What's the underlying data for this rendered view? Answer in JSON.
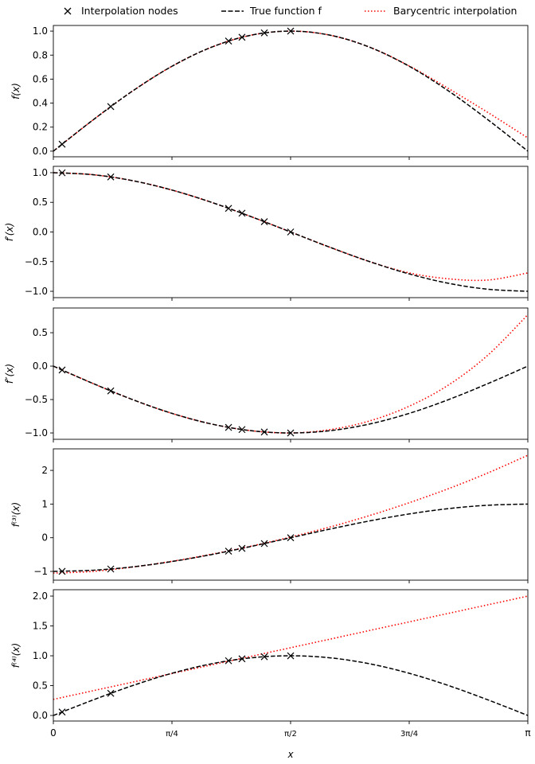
{
  "chart_data": {
    "type": "line",
    "legend": {
      "placement": "top",
      "entries": [
        {
          "label": "Interpolation nodes",
          "marker": "x",
          "color": "#000000"
        },
        {
          "label": "True function f",
          "style": "dashed",
          "color": "#000000"
        },
        {
          "label": "Barycentric interpolation",
          "style": "dotted",
          "color": "#ff0000"
        }
      ]
    },
    "xlabel": "x",
    "xlim": [
      0,
      3.14159
    ],
    "xticks": [
      {
        "value": 0,
        "label": "0"
      },
      {
        "value": 0.7854,
        "label": "π/4"
      },
      {
        "value": 1.5708,
        "label": "π/2"
      },
      {
        "value": 2.3562,
        "label": "3π/4"
      },
      {
        "value": 3.14159,
        "label": "π"
      }
    ],
    "x": [
      0,
      0.2618,
      0.5236,
      0.7854,
      1.0472,
      1.309,
      1.5708,
      1.8326,
      2.0944,
      2.3562,
      2.618,
      2.8798,
      3.14159
    ],
    "nodes_x": [
      0.058,
      0.38,
      1.16,
      1.249,
      1.397,
      1.571
    ],
    "panels": [
      {
        "ylabel": "f(x)",
        "ylim": [
          -0.047,
          1.047
        ],
        "yticks": [
          0.0,
          0.2,
          0.4,
          0.6,
          0.8,
          1.0
        ],
        "ytick_labels": [
          "0.0",
          "0.2",
          "0.4",
          "0.6",
          "0.8",
          "1.0"
        ],
        "true": [
          0,
          0.259,
          0.5,
          0.707,
          0.866,
          0.966,
          1,
          0.966,
          0.866,
          0.707,
          0.5,
          0.259,
          0
        ],
        "interp": [
          0,
          0.259,
          0.5,
          0.707,
          0.866,
          0.966,
          1,
          0.966,
          0.866,
          0.71,
          0.52,
          0.32,
          0.11
        ],
        "nodes_y": [
          0.058,
          0.371,
          0.917,
          0.949,
          0.985,
          1.0
        ]
      },
      {
        "ylabel": "f′(x)",
        "ylim": [
          -1.107,
          1.107
        ],
        "yticks": [
          -1,
          -0.5,
          0,
          0.5,
          1
        ],
        "ytick_labels": [
          "−1.0",
          "−0.5",
          "0.0",
          "0.5",
          "1.0"
        ],
        "true": [
          1,
          0.966,
          0.866,
          0.707,
          0.5,
          0.259,
          0,
          -0.259,
          -0.5,
          -0.707,
          -0.866,
          -0.966,
          -1
        ],
        "interp": [
          1,
          0.966,
          0.866,
          0.707,
          0.5,
          0.259,
          0,
          -0.259,
          -0.5,
          -0.69,
          -0.79,
          -0.81,
          -0.69
        ],
        "nodes_y": [
          0.998,
          0.929,
          0.399,
          0.317,
          0.173,
          0.0
        ]
      },
      {
        "ylabel": "f″(x)",
        "ylim": [
          -1.095,
          0.87
        ],
        "yticks": [
          -1,
          -0.5,
          0,
          0.5
        ],
        "ytick_labels": [
          "−1.0",
          "−0.5",
          "0.0",
          "0.5"
        ],
        "true": [
          0,
          -0.259,
          -0.5,
          -0.707,
          -0.866,
          -0.966,
          -1,
          -0.966,
          -0.866,
          -0.707,
          -0.5,
          -0.259,
          0
        ],
        "interp": [
          0,
          -0.259,
          -0.5,
          -0.707,
          -0.866,
          -0.966,
          -1,
          -0.95,
          -0.82,
          -0.6,
          -0.28,
          0.17,
          0.77
        ],
        "nodes_y": [
          -0.058,
          -0.371,
          -0.917,
          -0.949,
          -0.985,
          -1.0
        ]
      },
      {
        "ylabel": "f⁽³⁾(x)",
        "ylim": [
          -1.26,
          2.64
        ],
        "yticks": [
          -1,
          0,
          1,
          2
        ],
        "ytick_labels": [
          "−1",
          "0",
          "1",
          "2"
        ],
        "true": [
          -1,
          -0.966,
          -0.866,
          -0.707,
          -0.5,
          -0.259,
          0,
          0.259,
          0.5,
          0.707,
          0.866,
          0.966,
          1
        ],
        "interp": [
          -1.05,
          -1.0,
          -0.87,
          -0.7,
          -0.49,
          -0.25,
          0.02,
          0.32,
          0.66,
          1.04,
          1.46,
          1.93,
          2.45
        ],
        "nodes_y": [
          -0.998,
          -0.929,
          -0.399,
          -0.317,
          -0.173,
          0.0
        ]
      },
      {
        "ylabel": "f⁽⁴⁾(x)",
        "ylim": [
          -0.093,
          2.107
        ],
        "yticks": [
          0,
          0.5,
          1,
          1.5,
          2
        ],
        "ytick_labels": [
          "0.0",
          "0.5",
          "1.0",
          "1.5",
          "2.0"
        ],
        "true": [
          0,
          0.259,
          0.5,
          0.707,
          0.866,
          0.966,
          1,
          0.966,
          0.866,
          0.707,
          0.5,
          0.259,
          0
        ],
        "interp": [
          0.27,
          0.414,
          0.558,
          0.703,
          0.847,
          0.991,
          1.135,
          1.279,
          1.424,
          1.568,
          1.712,
          1.856,
          2.0
        ],
        "nodes_y": [
          0.058,
          0.371,
          0.917,
          0.949,
          0.985,
          1.0
        ]
      }
    ]
  }
}
